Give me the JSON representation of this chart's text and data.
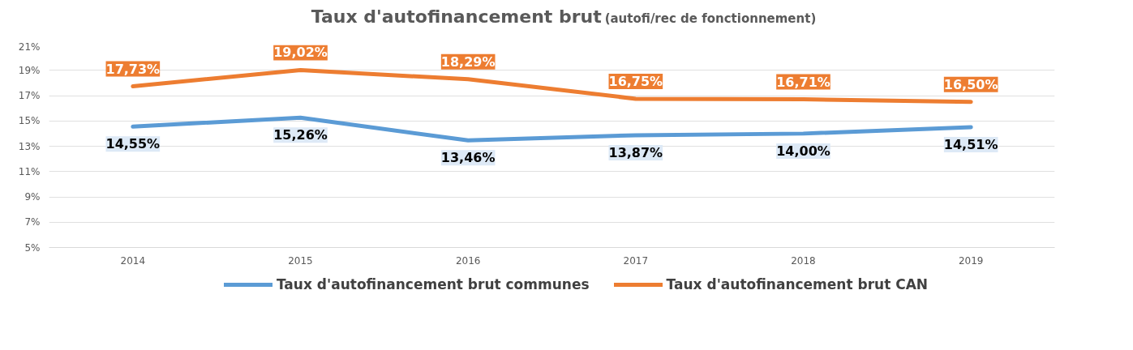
{
  "chart_data": {
    "type": "line",
    "title": "Taux d'autofinancement  brut",
    "subtitle": "(autofi/rec de fonctionnement)",
    "categories": [
      "2014",
      "2015",
      "2016",
      "2017",
      "2018",
      "2019"
    ],
    "series": [
      {
        "name": "Taux d'autofinancement brut communes",
        "color": "#5b9bd5",
        "values": [
          14.55,
          15.26,
          13.46,
          13.87,
          14.0,
          14.51
        ],
        "value_labels": [
          "14,55%",
          "15,26%",
          "13,46%",
          "13,87%",
          "14,00%",
          "14,51%"
        ]
      },
      {
        "name": "Taux d'autofinancement brut CAN",
        "color": "#ed7d31",
        "values": [
          17.73,
          19.02,
          18.29,
          16.75,
          16.71,
          16.5
        ],
        "value_labels": [
          "17,73%",
          "19,02%",
          "18,29%",
          "16,75%",
          "16,71%",
          "16,50%"
        ]
      }
    ],
    "ylim": [
      5,
      21
    ],
    "yticks": [
      {
        "value": 5,
        "label": "5%"
      },
      {
        "value": 7,
        "label": "7%"
      },
      {
        "value": 9,
        "label": "9%"
      },
      {
        "value": 11,
        "label": "11%"
      },
      {
        "value": 13,
        "label": "13%"
      },
      {
        "value": 15,
        "label": "15%"
      },
      {
        "value": 17,
        "label": "17%"
      },
      {
        "value": 19,
        "label": "19%"
      },
      {
        "value": 21,
        "label": "21%"
      }
    ],
    "grid": "y",
    "legend": "bottom",
    "marker": "none",
    "line_style": "solid"
  }
}
